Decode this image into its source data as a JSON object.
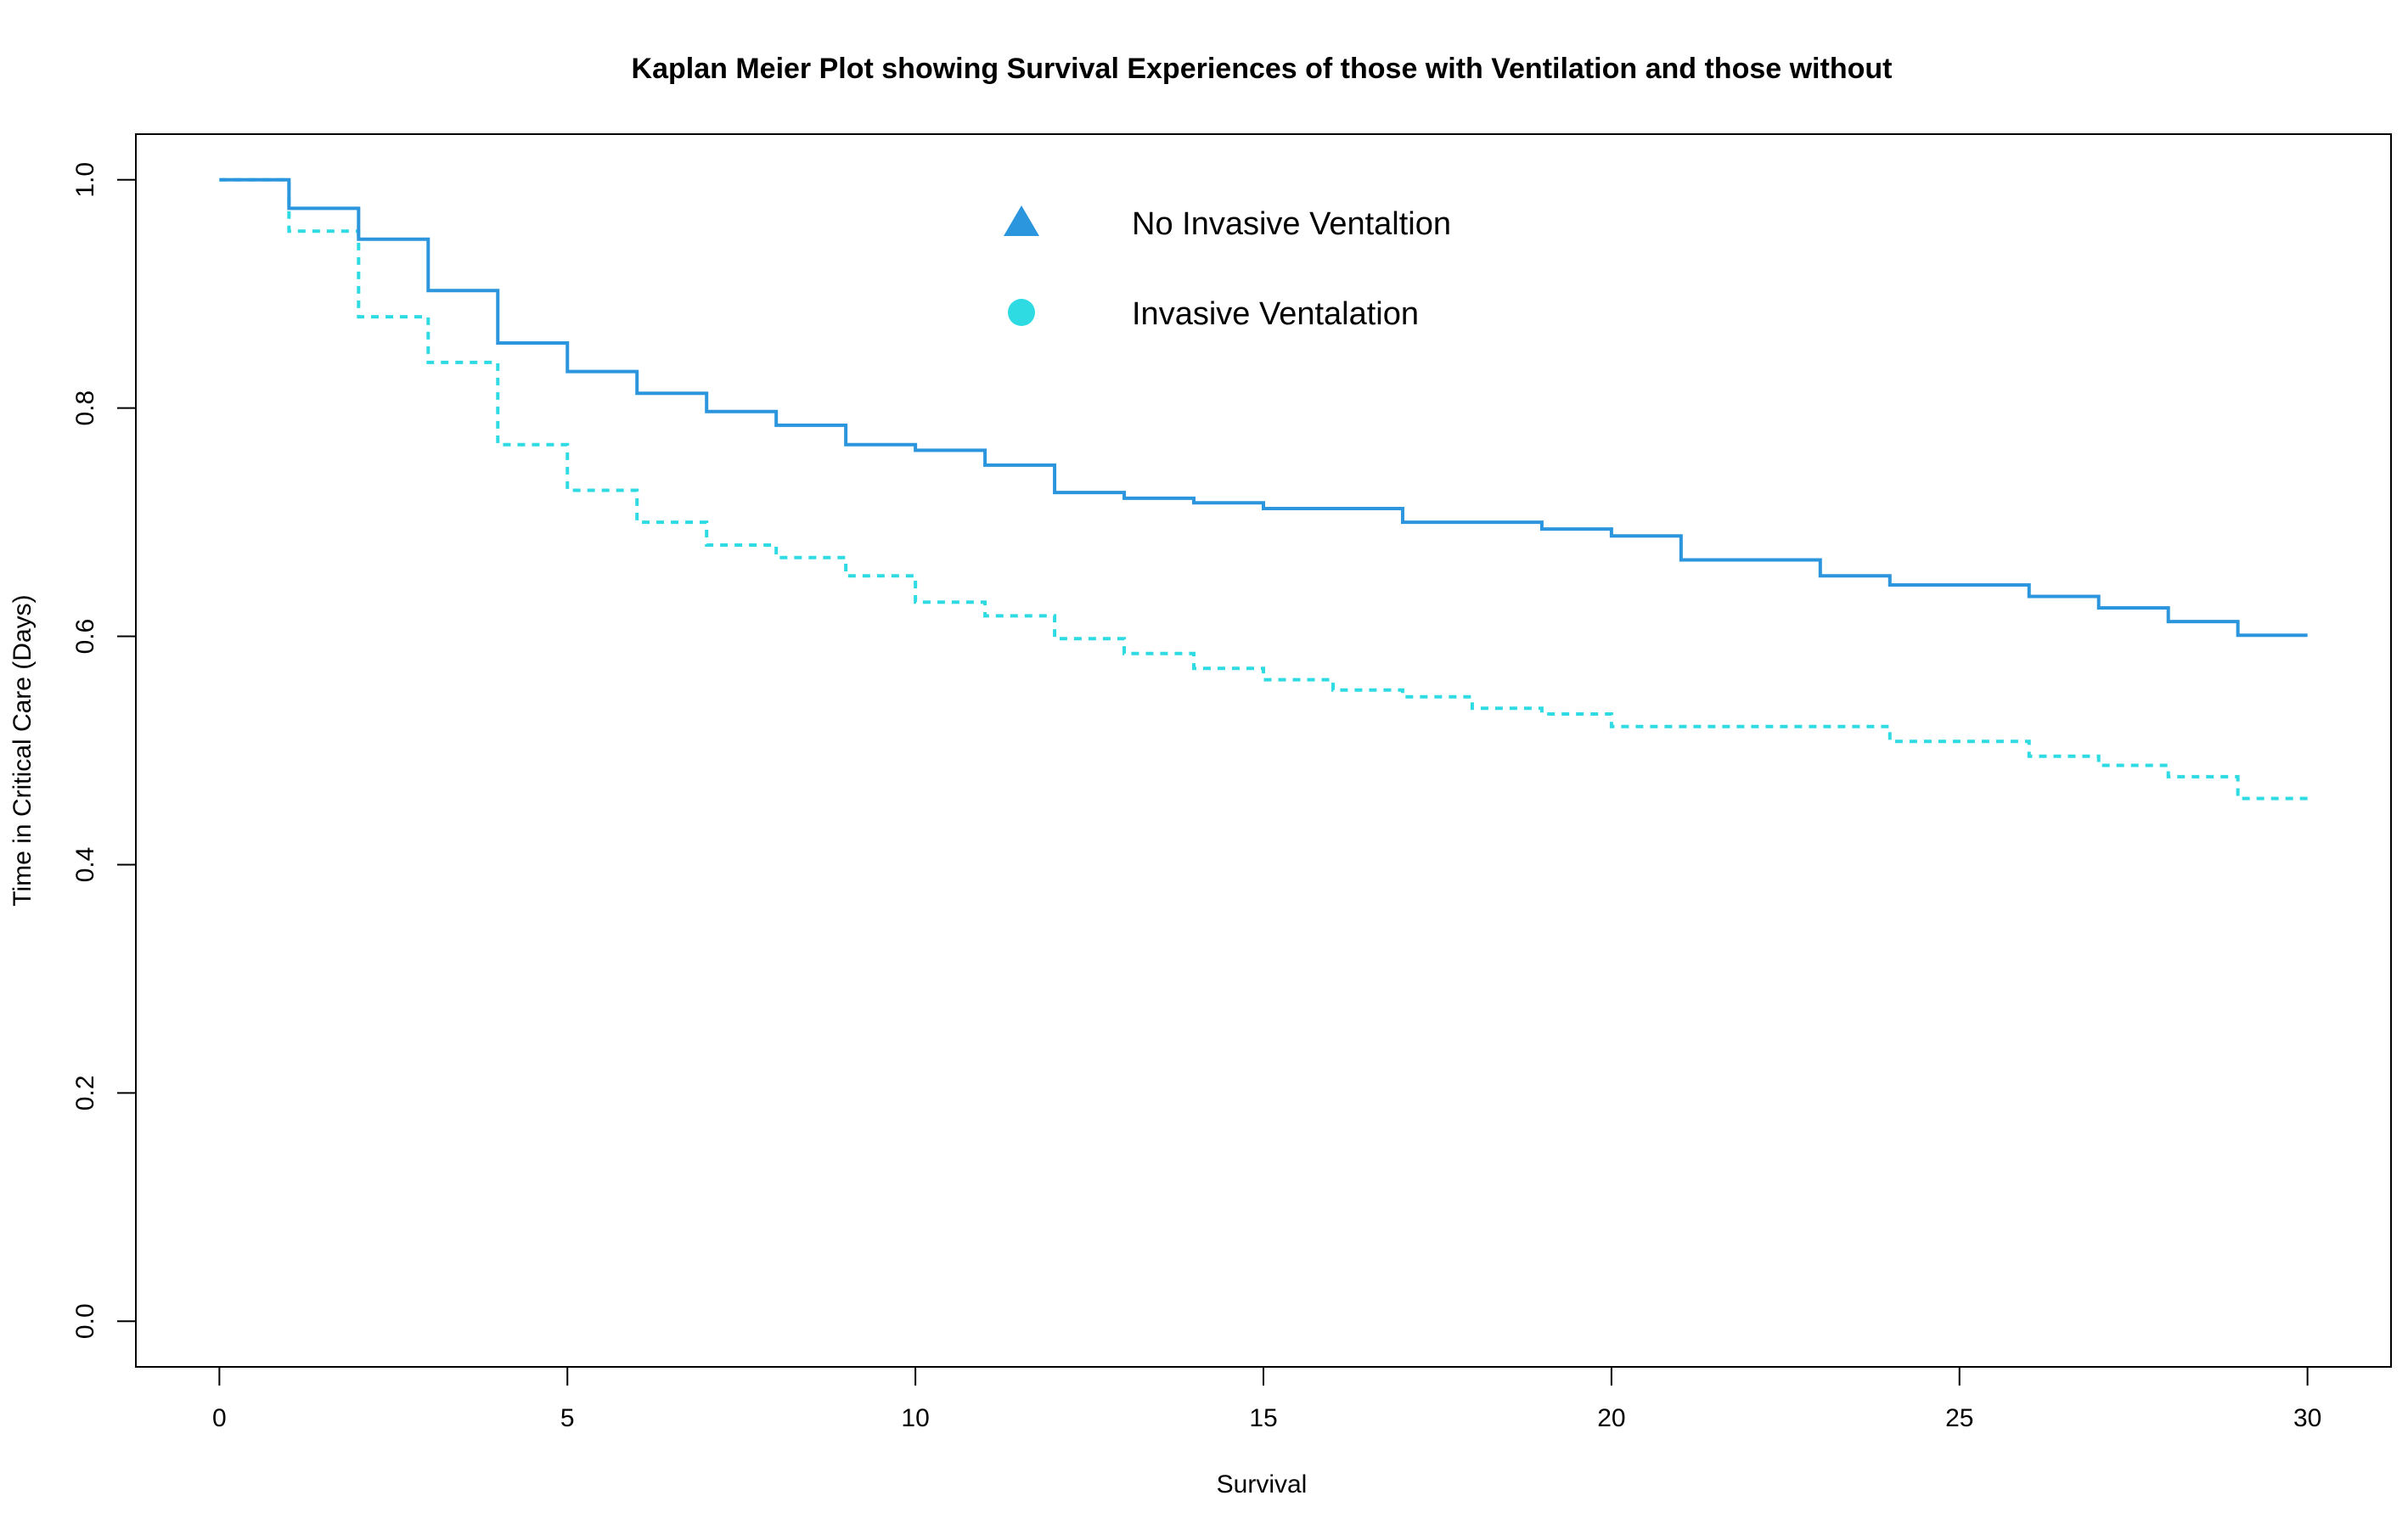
{
  "chart_data": {
    "type": "line",
    "subtype": "kaplan-meier step plot",
    "title": "Kaplan Meier Plot showing Survival Experiences of those with Ventilation and those without",
    "xlabel": "Survival",
    "ylabel": "Time in Critical Care (Days)",
    "xlim": [
      -1.2,
      31.2
    ],
    "ylim": [
      -0.04,
      1.04
    ],
    "x_ticks": [
      0,
      5,
      10,
      15,
      20,
      25,
      30
    ],
    "x_tick_labels": [
      "0",
      "5",
      "10",
      "15",
      "20",
      "25",
      "30"
    ],
    "y_ticks": [
      0.0,
      0.2,
      0.4,
      0.6,
      0.8,
      1.0
    ],
    "y_tick_labels": [
      "0.0",
      "0.2",
      "0.4",
      "0.6",
      "0.8",
      "1.0"
    ],
    "grid": false,
    "legend_position": "top-center",
    "x": [
      0,
      1,
      2,
      3,
      4,
      5,
      6,
      7,
      8,
      9,
      10,
      11,
      12,
      13,
      14,
      15,
      16,
      17,
      18,
      19,
      20,
      21,
      22,
      23,
      24,
      25,
      26,
      27,
      28,
      29,
      30
    ],
    "series": [
      {
        "name": "No Invasive Ventaltion",
        "color": "#2b95dd",
        "line_style": "solid",
        "marker": "triangle",
        "values": [
          1.0,
          0.975,
          0.948,
          0.903,
          0.857,
          0.832,
          0.813,
          0.797,
          0.785,
          0.768,
          0.763,
          0.75,
          0.726,
          0.721,
          0.717,
          0.712,
          0.712,
          0.7,
          0.7,
          0.694,
          0.688,
          0.667,
          0.667,
          0.653,
          0.645,
          0.645,
          0.635,
          0.625,
          0.613,
          0.601,
          0.601
        ]
      },
      {
        "name": "Invasive Ventalation",
        "color": "#2fdbe3",
        "line_style": "dashed",
        "marker": "circle",
        "values": [
          1.0,
          0.955,
          0.88,
          0.84,
          0.768,
          0.728,
          0.7,
          0.68,
          0.669,
          0.653,
          0.63,
          0.618,
          0.598,
          0.585,
          0.572,
          0.562,
          0.553,
          0.547,
          0.537,
          0.532,
          0.521,
          0.521,
          0.521,
          0.521,
          0.508,
          0.508,
          0.495,
          0.487,
          0.477,
          0.458,
          0.458
        ]
      }
    ]
  }
}
